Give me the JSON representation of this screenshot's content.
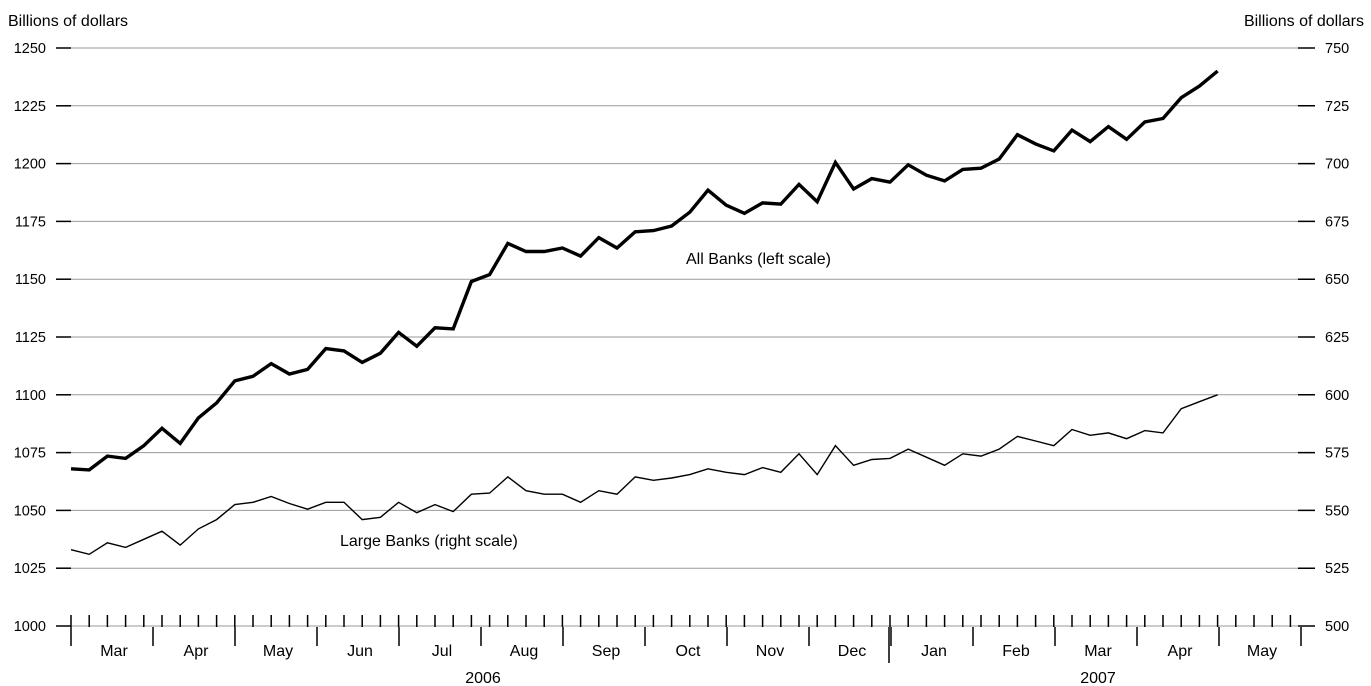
{
  "chart_data": {
    "type": "line",
    "left_axis": {
      "title": "Billions of dollars",
      "ticks": [
        1000,
        1025,
        1050,
        1075,
        1100,
        1125,
        1150,
        1175,
        1200,
        1225,
        1250
      ],
      "ylim": [
        1000,
        1250
      ]
    },
    "right_axis": {
      "title": "Billions of dollars",
      "ticks": [
        500,
        525,
        550,
        575,
        600,
        625,
        650,
        675,
        700,
        725,
        750
      ],
      "ylim": [
        500,
        750
      ]
    },
    "x_axis": {
      "months": [
        "Mar",
        "Apr",
        "May",
        "Jun",
        "Jul",
        "Aug",
        "Sep",
        "Oct",
        "Nov",
        "Dec",
        "Jan",
        "Feb",
        "Mar",
        "Apr",
        "May"
      ],
      "years": [
        {
          "label": "2006",
          "first_month": 0,
          "last_month": 9
        },
        {
          "label": "2007",
          "first_month": 10,
          "last_month": 14
        }
      ]
    },
    "grid": true,
    "series": [
      {
        "name": "All Banks (left scale)",
        "axis": "left",
        "values": [
          1068,
          1067.5,
          1073.5,
          1072.5,
          1078,
          1085.5,
          1079,
          1090,
          1096.5,
          1106,
          1108,
          1113.5,
          1109,
          1111,
          1120,
          1119,
          1114,
          1118,
          1127,
          1121,
          1129,
          1128.5,
          1149,
          1152,
          1165.5,
          1162,
          1162,
          1163.5,
          1160,
          1168,
          1163.5,
          1170.5,
          1171,
          1173,
          1179,
          1188.5,
          1182,
          1178.5,
          1183,
          1182.5,
          1191,
          1183.5,
          1200.5,
          1189,
          1193.5,
          1192,
          1199.5,
          1195,
          1192.5,
          1197.5,
          1198,
          1202,
          1212.5,
          1208.5,
          1205.5,
          1214.5,
          1209.5,
          1216,
          1210.5,
          1218,
          1219.5,
          1228.5,
          1233.5,
          1240
        ]
      },
      {
        "name": "Large Banks (right scale)",
        "axis": "right",
        "values": [
          533,
          531,
          536,
          534,
          537.5,
          541,
          535,
          542,
          546,
          552.5,
          553.5,
          556,
          553,
          550.5,
          553.5,
          553.5,
          546,
          547,
          553.5,
          549,
          552.5,
          549.5,
          557,
          557.5,
          564.5,
          558.5,
          557,
          557,
          553.5,
          558.5,
          557,
          564.5,
          563,
          564,
          565.5,
          568,
          566.5,
          565.5,
          568.5,
          566.5,
          574.5,
          565.5,
          578,
          569.5,
          572,
          572.5,
          576.5,
          573,
          569.5,
          574.5,
          573.5,
          576.5,
          582,
          580,
          578,
          585,
          582.5,
          583.5,
          581,
          584.5,
          583.5,
          594,
          597,
          600
        ]
      }
    ],
    "annotations": [
      {
        "text": "All Banks (left scale)",
        "series": 0
      },
      {
        "text": "Large Banks (right scale)",
        "series": 1
      }
    ]
  }
}
